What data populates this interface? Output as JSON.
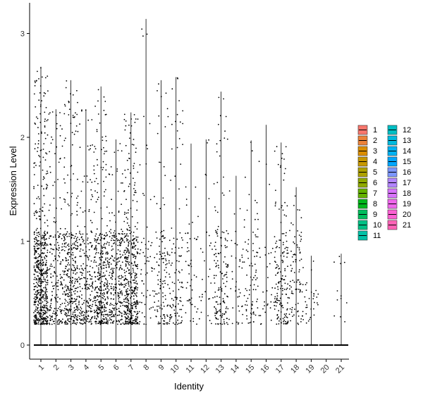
{
  "chart_data": {
    "type": "violin",
    "xlabel": "Identity",
    "ylabel": "Expression Level",
    "ylim": [
      -0.13,
      3.3
    ],
    "y_ticks": [
      0,
      1,
      2,
      3
    ],
    "categories": [
      "1",
      "2",
      "3",
      "4",
      "5",
      "6",
      "7",
      "8",
      "9",
      "10",
      "11",
      "12",
      "13",
      "14",
      "15",
      "16",
      "17",
      "18",
      "19",
      "20",
      "21"
    ],
    "max_values": [
      2.68,
      2.27,
      2.55,
      2.27,
      2.49,
      1.98,
      2.24,
      3.14,
      2.55,
      2.58,
      1.94,
      1.98,
      2.44,
      1.63,
      1.97,
      2.12,
      1.95,
      1.52,
      0.86,
      0.0,
      0.88
    ],
    "point_density": [
      600,
      200,
      330,
      210,
      360,
      250,
      430,
      60,
      120,
      110,
      50,
      30,
      150,
      40,
      80,
      30,
      160,
      90,
      30,
      0,
      12
    ],
    "point_color": "#000000",
    "legend": {
      "position": "right",
      "ncol": 2,
      "entries": [
        {
          "label": "1",
          "color": "#F8766D"
        },
        {
          "label": "2",
          "color": "#EC8239"
        },
        {
          "label": "3",
          "color": "#DB8E00"
        },
        {
          "label": "4",
          "color": "#C79800"
        },
        {
          "label": "5",
          "color": "#AEA200"
        },
        {
          "label": "6",
          "color": "#8FAA00"
        },
        {
          "label": "7",
          "color": "#64B200"
        },
        {
          "label": "8",
          "color": "#00B81B"
        },
        {
          "label": "9",
          "color": "#00BD5C"
        },
        {
          "label": "10",
          "color": "#00C085"
        },
        {
          "label": "11",
          "color": "#00C1A7"
        },
        {
          "label": "12",
          "color": "#00BFC4"
        },
        {
          "label": "13",
          "color": "#00BADE"
        },
        {
          "label": "14",
          "color": "#00B2F3"
        },
        {
          "label": "15",
          "color": "#00A6FF"
        },
        {
          "label": "16",
          "color": "#7C96FF"
        },
        {
          "label": "17",
          "color": "#B385FF"
        },
        {
          "label": "18",
          "color": "#D874FD"
        },
        {
          "label": "19",
          "color": "#EF67EB"
        },
        {
          "label": "20",
          "color": "#FD61D3"
        },
        {
          "label": "21",
          "color": "#FF63B6"
        }
      ]
    }
  }
}
